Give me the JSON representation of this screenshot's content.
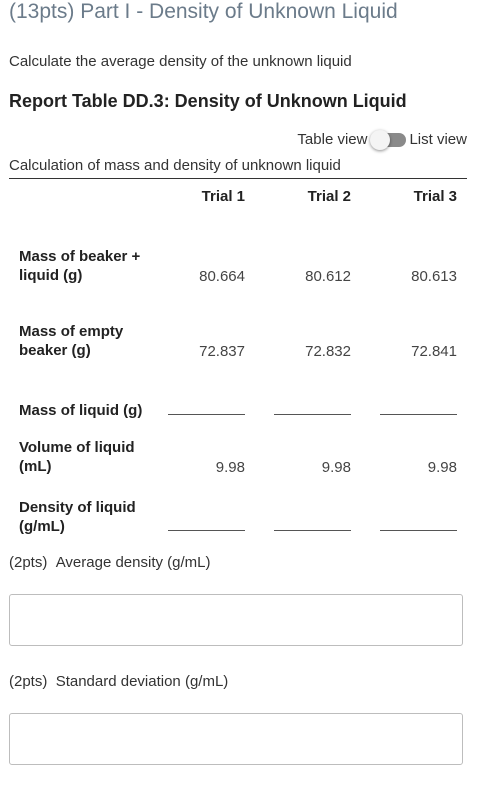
{
  "section": {
    "title": "(13pts) Part I - Density of Unknown Liquid",
    "instructions": "Calculate the average density of the unknown liquid"
  },
  "report_table": {
    "title": "Report Table DD.3: Density of Unknown Liquid",
    "view_toggle": {
      "left_label": "Table view",
      "right_label": "List view",
      "selected": "Table view"
    },
    "caption": "Calculation of mass and density of unknown liquid",
    "headers": [
      "",
      "Trial 1",
      "Trial 2",
      "Trial 3"
    ],
    "rows": [
      {
        "label": "Mass of beaker + liquid (g)",
        "values": [
          "80.664",
          "80.612",
          "80.613"
        ]
      },
      {
        "label": "Mass of empty beaker (g)",
        "values": [
          "72.837",
          "72.832",
          "72.841"
        ]
      },
      {
        "label": "Mass of liquid (g)",
        "values": [
          "",
          "",
          ""
        ]
      },
      {
        "label": "Volume of liquid (mL)",
        "values": [
          "9.98",
          "9.98",
          "9.98"
        ]
      },
      {
        "label": "Density of liquid (g/mL)",
        "values": [
          "",
          "",
          ""
        ]
      }
    ]
  },
  "questions": [
    {
      "points": "(2pts)",
      "label": "Average density (g/mL)",
      "value": ""
    },
    {
      "points": "(2pts)",
      "label": "Standard deviation (g/mL)",
      "value": ""
    }
  ]
}
